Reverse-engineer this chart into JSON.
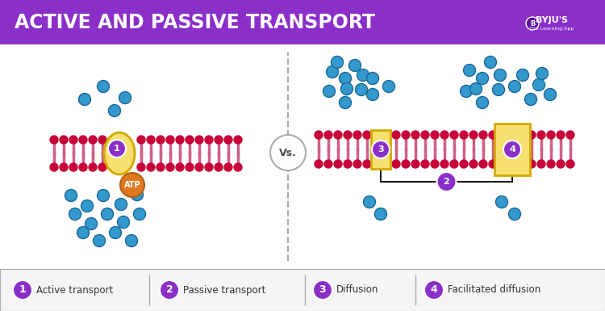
{
  "title": "ACTIVE AND PASSIVE TRANSPORT",
  "title_bg": "#8B2FC9",
  "title_color": "#FFFFFF",
  "bg_color": "#FFFFFF",
  "membrane_color": "#C8003A",
  "phospholipid_tail_color": "#D06080",
  "carrier_protein_color": "#F5E070",
  "protein_channel_outline": "#D4A800",
  "atp_color": "#E07820",
  "atp_text": "ATP",
  "vs_text": "Vs.",
  "legend_items": [
    {
      "num": "1",
      "label": "Active transport"
    },
    {
      "num": "2",
      "label": "Passive transport"
    },
    {
      "num": "3",
      "label": "Diffusion"
    },
    {
      "num": "4",
      "label": "Facilitated diffusion"
    }
  ],
  "legend_circle_color": "#8B2FC9",
  "legend_text_color": "#333333",
  "dot_color": "#3399CC",
  "dot_outline": "#1A6699",
  "footer_line_color": "#AAAAAA",
  "byju_bg": "#8B2FC9",
  "dashed_line_color": "#AAAAAA"
}
